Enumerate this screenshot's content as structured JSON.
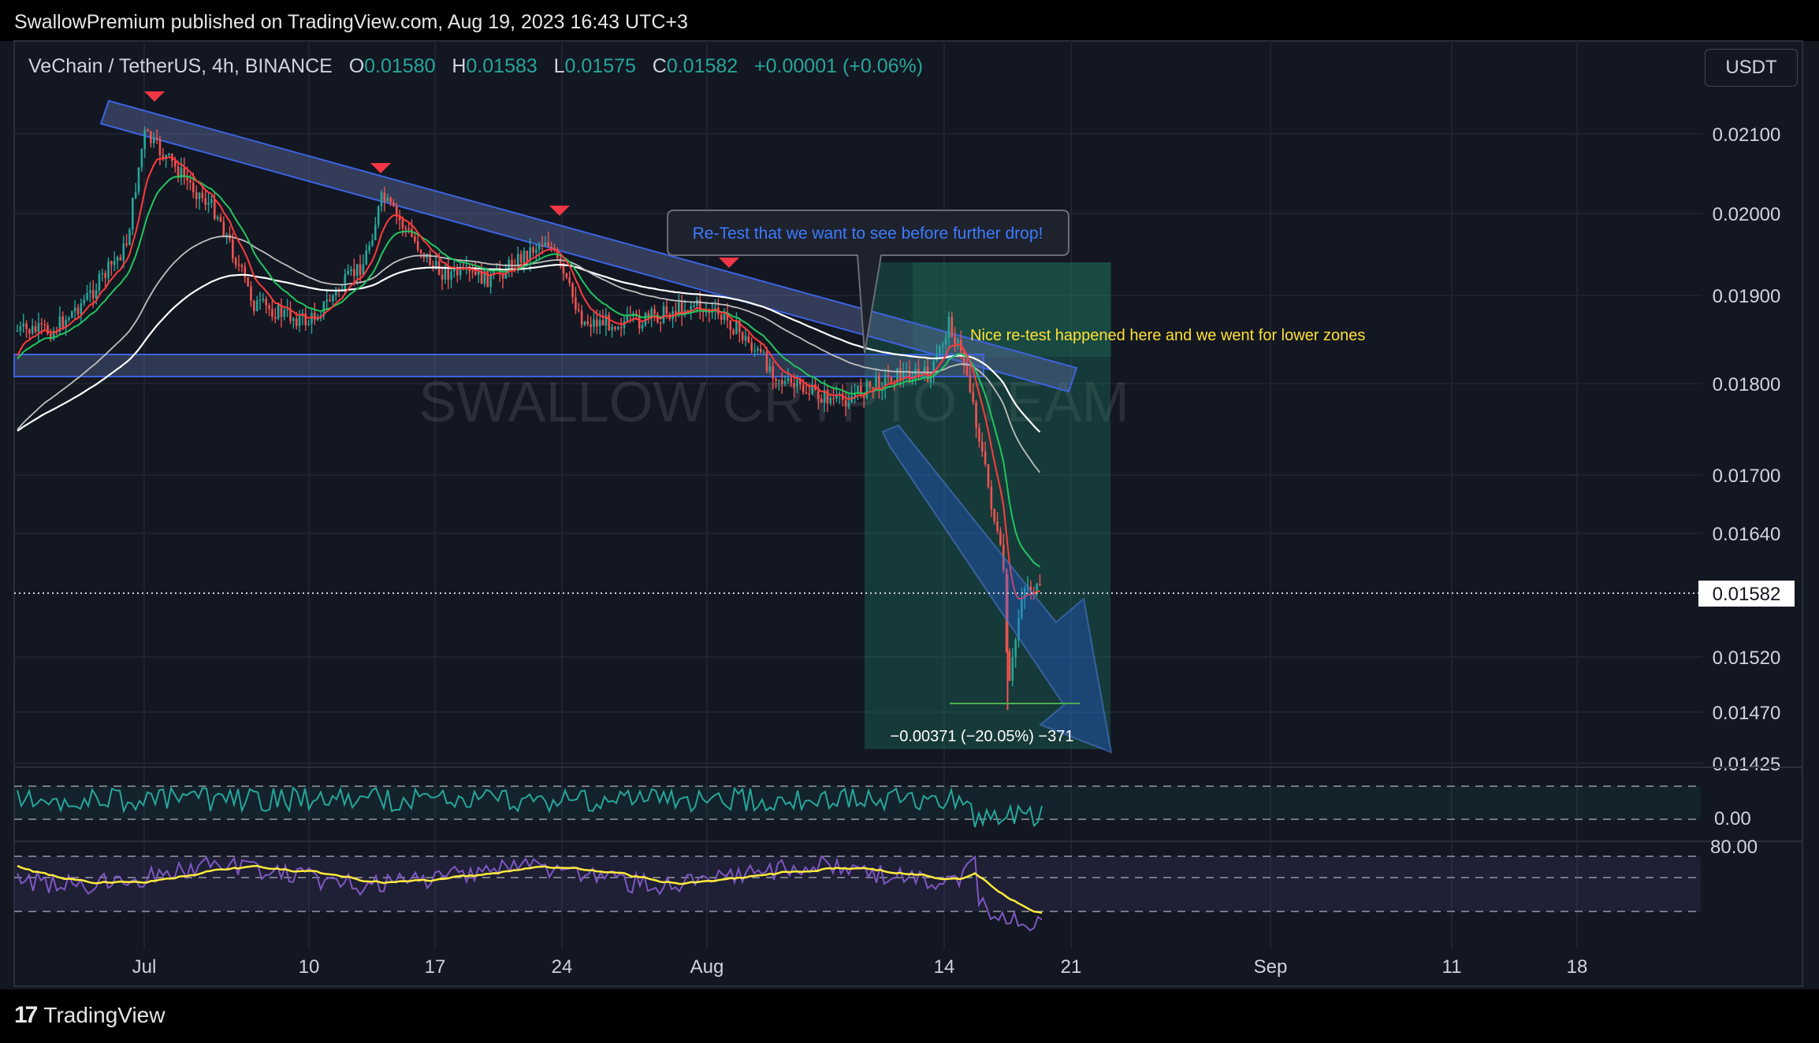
{
  "publisher_line": "SwallowPremium published on TradingView.com, Aug 19, 2023 16:43 UTC+3",
  "brand": {
    "logo": "17",
    "name": "TradingView"
  },
  "symbol": {
    "name": "VeChain / TetherUS, 4h, BINANCE",
    "o_label": "O",
    "o": "0.01580",
    "h_label": "H",
    "h": "0.01583",
    "l_label": "L",
    "l": "0.01575",
    "c_label": "C",
    "c": "0.01582",
    "change": "+0.00001 (+0.06%)"
  },
  "currency_button": "USDT",
  "watermark": "SWALLOW CRYPTO TEAM",
  "annotations": {
    "retest_box": "Re-Test that we want to see before further drop!",
    "retest_note": "Nice re-test happened here and we went for lower zones",
    "measure": "−0.00371 (−20.05%) −371"
  },
  "colors": {
    "background": "#131722",
    "up": "#26a69a",
    "down": "#ef5350",
    "ema_fast": "#ff3b3b",
    "ema_mid": "#22c55e",
    "ema_slow": "#ffffff",
    "rsi": "#7e57c2",
    "rsi_ma": "#ffeb3b",
    "osc": "#26a69a"
  },
  "chart_data": {
    "type": "candlestick",
    "symbol": "VETUSDT",
    "interval": "4h",
    "x_ticks": [
      "Jul",
      "10",
      "17",
      "24",
      "Aug",
      "14",
      "21",
      "Sep",
      "11",
      "18"
    ],
    "y_ticks": [
      "0.02100",
      "0.02000",
      "0.01900",
      "0.01800",
      "0.01700",
      "0.01640",
      "0.01520",
      "0.01470",
      "0.01425"
    ],
    "last_price_label": "0.01582",
    "y_ticks_osc": [
      "0.00"
    ],
    "y_ticks_rsi": [
      "80.00"
    ],
    "price_path": [
      {
        "date": "2023-06-26",
        "close": 0.0186
      },
      {
        "date": "2023-06-28",
        "close": 0.019
      },
      {
        "date": "2023-06-30",
        "close": 0.0196
      },
      {
        "date": "2023-07-01",
        "close": 0.021
      },
      {
        "date": "2023-07-03",
        "close": 0.0205
      },
      {
        "date": "2023-07-05",
        "close": 0.02
      },
      {
        "date": "2023-07-07",
        "close": 0.0189
      },
      {
        "date": "2023-07-10",
        "close": 0.0187
      },
      {
        "date": "2023-07-13",
        "close": 0.0194
      },
      {
        "date": "2023-07-14",
        "close": 0.0202
      },
      {
        "date": "2023-07-17",
        "close": 0.0193
      },
      {
        "date": "2023-07-20",
        "close": 0.0192
      },
      {
        "date": "2023-07-23",
        "close": 0.0197
      },
      {
        "date": "2023-07-25",
        "close": 0.0187
      },
      {
        "date": "2023-07-28",
        "close": 0.0187
      },
      {
        "date": "2023-07-31",
        "close": 0.0189
      },
      {
        "date": "2023-08-02",
        "close": 0.0187
      },
      {
        "date": "2023-08-05",
        "close": 0.018
      },
      {
        "date": "2023-08-08",
        "close": 0.0178
      },
      {
        "date": "2023-08-11",
        "close": 0.0181
      },
      {
        "date": "2023-08-13",
        "close": 0.0181
      },
      {
        "date": "2023-08-14",
        "close": 0.0187
      },
      {
        "date": "2023-08-15",
        "close": 0.0181
      },
      {
        "date": "2023-08-16",
        "close": 0.017
      },
      {
        "date": "2023-08-17",
        "close": 0.016
      },
      {
        "date": "2023-08-17",
        "close": 0.0148
      },
      {
        "date": "2023-08-18",
        "close": 0.0159
      },
      {
        "date": "2023-08-19",
        "close": 0.01582
      }
    ],
    "measurement": {
      "change": -0.00371,
      "percent": -20.05,
      "ticks": -371
    }
  }
}
